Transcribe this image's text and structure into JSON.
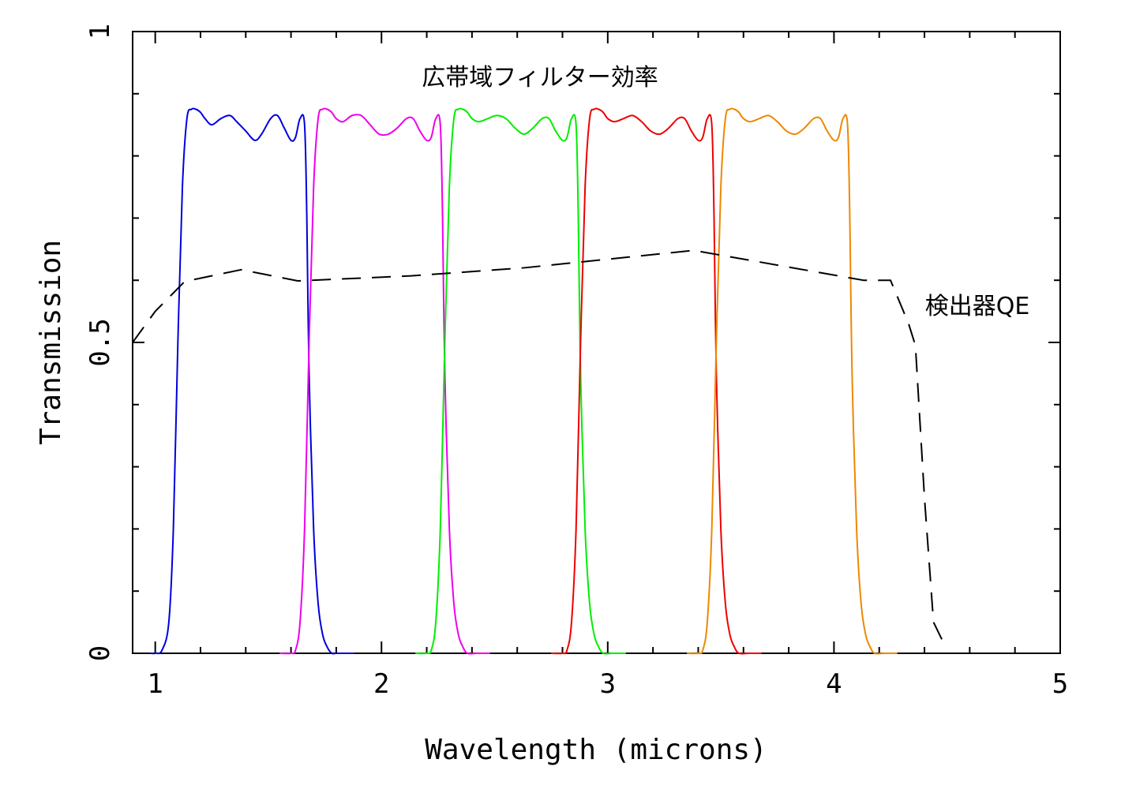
{
  "chart_data": {
    "type": "line",
    "title": "",
    "xlabel": "Wavelength (microns)",
    "ylabel": "Transmission",
    "xlim": [
      0.9,
      5.0
    ],
    "ylim": [
      0,
      1
    ],
    "grid": false,
    "xticks": [
      1,
      2,
      3,
      4,
      5
    ],
    "xtick_labels": [
      "1",
      "2",
      "3",
      "4",
      "5"
    ],
    "yticks": [
      0,
      0.5,
      1
    ],
    "ytick_labels": [
      "0",
      "0.5",
      "1"
    ],
    "x_minor_step": 0.2,
    "y_minor_step": 0.1,
    "annotations": [
      {
        "text": "広帯域フィルター効率",
        "x": 2.05,
        "y": 0.925
      },
      {
        "text": "検出器QE",
        "x": 4.58,
        "y": 0.548
      }
    ],
    "series": [
      {
        "color": "#0000dd",
        "line_style": "solid",
        "range": [
          0.98,
          1.88
        ],
        "x": [
          0.98,
          1.0,
          1.03,
          1.06,
          1.08,
          1.1,
          1.12,
          1.14,
          1.16,
          1.18,
          1.2,
          1.22,
          1.25,
          1.29,
          1.33,
          1.36,
          1.4,
          1.44,
          1.47,
          1.51,
          1.54,
          1.57,
          1.6,
          1.62,
          1.64,
          1.66,
          1.67,
          1.68,
          1.7,
          1.72,
          1.74,
          1.76,
          1.78,
          1.8,
          1.83,
          1.88
        ],
        "y": [
          0.0,
          0.0,
          0.005,
          0.05,
          0.2,
          0.5,
          0.75,
          0.86,
          0.875,
          0.875,
          0.87,
          0.86,
          0.85,
          0.86,
          0.865,
          0.855,
          0.84,
          0.825,
          0.835,
          0.86,
          0.865,
          0.845,
          0.825,
          0.83,
          0.86,
          0.85,
          0.7,
          0.45,
          0.2,
          0.08,
          0.03,
          0.01,
          0.0,
          0.0,
          0.0,
          0.0
        ]
      },
      {
        "color": "#ee00ee",
        "line_style": "solid",
        "range": [
          1.55,
          2.48
        ],
        "x": [
          1.55,
          1.6,
          1.62,
          1.64,
          1.66,
          1.68,
          1.7,
          1.72,
          1.74,
          1.76,
          1.78,
          1.8,
          1.83,
          1.87,
          1.91,
          1.95,
          1.99,
          2.03,
          2.07,
          2.11,
          2.14,
          2.17,
          2.2,
          2.22,
          2.24,
          2.26,
          2.27,
          2.28,
          2.3,
          2.32,
          2.34,
          2.36,
          2.38,
          2.42,
          2.48
        ],
        "y": [
          0.0,
          0.0,
          0.005,
          0.05,
          0.2,
          0.5,
          0.75,
          0.86,
          0.875,
          0.875,
          0.87,
          0.86,
          0.855,
          0.865,
          0.865,
          0.85,
          0.835,
          0.835,
          0.845,
          0.86,
          0.86,
          0.84,
          0.825,
          0.83,
          0.86,
          0.85,
          0.7,
          0.45,
          0.2,
          0.08,
          0.03,
          0.01,
          0.0,
          0.0,
          0.0
        ]
      },
      {
        "color": "#00ee00",
        "line_style": "solid",
        "range": [
          2.15,
          3.08
        ],
        "x": [
          2.15,
          2.2,
          2.22,
          2.24,
          2.26,
          2.28,
          2.3,
          2.32,
          2.34,
          2.36,
          2.38,
          2.4,
          2.43,
          2.47,
          2.51,
          2.55,
          2.59,
          2.63,
          2.67,
          2.71,
          2.74,
          2.77,
          2.8,
          2.82,
          2.84,
          2.86,
          2.87,
          2.88,
          2.9,
          2.92,
          2.94,
          2.96,
          2.98,
          3.02,
          3.08
        ],
        "y": [
          0.0,
          0.0,
          0.005,
          0.05,
          0.2,
          0.5,
          0.75,
          0.86,
          0.875,
          0.875,
          0.87,
          0.86,
          0.855,
          0.86,
          0.865,
          0.86,
          0.845,
          0.835,
          0.845,
          0.86,
          0.86,
          0.84,
          0.825,
          0.83,
          0.86,
          0.85,
          0.7,
          0.45,
          0.2,
          0.08,
          0.03,
          0.01,
          0.0,
          0.0,
          0.0
        ]
      },
      {
        "color": "#ee0000",
        "line_style": "solid",
        "range": [
          2.75,
          3.68
        ],
        "x": [
          2.75,
          2.8,
          2.82,
          2.84,
          2.86,
          2.88,
          2.9,
          2.92,
          2.94,
          2.96,
          2.98,
          3.0,
          3.03,
          3.07,
          3.11,
          3.15,
          3.19,
          3.23,
          3.27,
          3.31,
          3.34,
          3.37,
          3.4,
          3.42,
          3.44,
          3.46,
          3.47,
          3.48,
          3.5,
          3.52,
          3.54,
          3.56,
          3.58,
          3.62,
          3.68
        ],
        "y": [
          0.0,
          0.0,
          0.005,
          0.05,
          0.2,
          0.5,
          0.75,
          0.86,
          0.875,
          0.875,
          0.87,
          0.86,
          0.855,
          0.86,
          0.865,
          0.855,
          0.84,
          0.835,
          0.845,
          0.86,
          0.86,
          0.84,
          0.825,
          0.83,
          0.86,
          0.85,
          0.7,
          0.45,
          0.2,
          0.08,
          0.03,
          0.01,
          0.0,
          0.0,
          0.0
        ]
      },
      {
        "color": "#ee8800",
        "line_style": "solid",
        "range": [
          3.35,
          4.28
        ],
        "x": [
          3.35,
          3.4,
          3.42,
          3.44,
          3.46,
          3.48,
          3.5,
          3.52,
          3.54,
          3.56,
          3.58,
          3.6,
          3.63,
          3.67,
          3.71,
          3.75,
          3.79,
          3.83,
          3.87,
          3.91,
          3.94,
          3.97,
          4.0,
          4.02,
          4.04,
          4.06,
          4.07,
          4.08,
          4.1,
          4.12,
          4.14,
          4.16,
          4.18,
          4.22,
          4.28
        ],
        "y": [
          0.0,
          0.0,
          0.005,
          0.05,
          0.2,
          0.5,
          0.75,
          0.86,
          0.875,
          0.875,
          0.87,
          0.86,
          0.855,
          0.86,
          0.865,
          0.855,
          0.84,
          0.835,
          0.845,
          0.86,
          0.86,
          0.84,
          0.825,
          0.83,
          0.86,
          0.85,
          0.7,
          0.45,
          0.2,
          0.08,
          0.03,
          0.01,
          0.0,
          0.0,
          0.0
        ]
      },
      {
        "color": "#000000",
        "line_style": "dashed",
        "range": [
          0.9,
          4.48
        ],
        "x": [
          0.9,
          1.0,
          1.13,
          1.38,
          1.63,
          2.13,
          2.63,
          3.38,
          4.13,
          4.25,
          4.33,
          4.36,
          4.4,
          4.44,
          4.48
        ],
        "y": [
          0.5,
          0.55,
          0.598,
          0.617,
          0.599,
          0.607,
          0.62,
          0.648,
          0.6,
          0.6,
          0.53,
          0.495,
          0.25,
          0.05,
          0.02
        ]
      }
    ]
  }
}
